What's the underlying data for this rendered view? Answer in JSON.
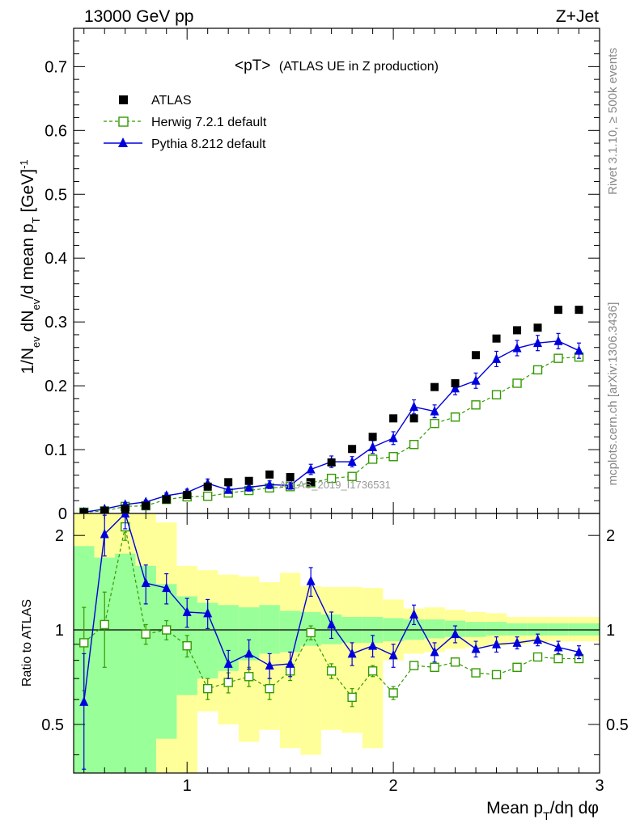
{
  "header": {
    "left": "13000 GeV pp",
    "right": "Z+Jet"
  },
  "side_text": {
    "rivet": "Rivet 3.1.10, ≥ 500k events",
    "mcplots": "mcplots.cern.ch [arXiv:1306.3436]"
  },
  "watermark": "ATLAS_2019_I1736531",
  "chart_data": [
    {
      "type": "scatter",
      "title": "<pT> (ATLAS UE in Z production)",
      "title_main": "<pT>",
      "title_sub": "(ATLAS UE in Z production)",
      "ylabel": "1/N_ev dN_ev/d mean p_T [GeV]^-1",
      "xlabel": "Mean p_T/dη dφ",
      "xlim": [
        0.45,
        3.0
      ],
      "ylim": [
        0,
        0.76
      ],
      "yticks": [
        0,
        0.1,
        0.2,
        0.3,
        0.4,
        0.5,
        0.6,
        0.7
      ],
      "ytick_labels": [
        "0",
        "0.1",
        "0.2",
        "0.3",
        "0.4",
        "0.5",
        "0.6",
        "0.7"
      ],
      "legend": [
        "ATLAS",
        "Herwig 7.2.1 default",
        "Pythia 8.212 default"
      ],
      "legend_position": "top-left",
      "x": [
        0.5,
        0.6,
        0.7,
        0.8,
        0.9,
        1.0,
        1.1,
        1.2,
        1.3,
        1.4,
        1.5,
        1.6,
        1.7,
        1.8,
        1.9,
        2.0,
        2.1,
        2.2,
        2.3,
        2.4,
        2.5,
        2.6,
        2.7,
        2.8,
        2.9
      ],
      "series": [
        {
          "name": "ATLAS",
          "marker": "filled-square",
          "color": "#000000",
          "values": [
            0.002,
            0.004,
            0.007,
            0.012,
            0.022,
            0.029,
            0.042,
            0.049,
            0.051,
            0.061,
            0.057,
            0.049,
            0.08,
            0.101,
            0.12,
            0.149,
            0.149,
            0.198,
            0.204,
            0.248,
            0.274,
            0.287,
            0.291,
            0.319,
            0.319
          ]
        },
        {
          "name": "Herwig 7.2.1 default",
          "marker": "open-square",
          "line": "dashed",
          "color": "#339900",
          "values": [
            0.002,
            0.004,
            0.011,
            0.012,
            0.022,
            0.026,
            0.027,
            0.032,
            0.036,
            0.04,
            0.042,
            0.048,
            0.055,
            0.058,
            0.085,
            0.089,
            0.108,
            0.141,
            0.151,
            0.17,
            0.186,
            0.204,
            0.225,
            0.243,
            0.245
          ],
          "errors": [
            0.0005,
            0.0007,
            0.001,
            0.001,
            0.001,
            0.002,
            0.002,
            0.002,
            0.003,
            0.003,
            0.003,
            0.004,
            0.004,
            0.004,
            0.004,
            0.004,
            0.004,
            0.004,
            0.004,
            0.004,
            0.004,
            0.004,
            0.004,
            0.004,
            0.004
          ]
        },
        {
          "name": "Pythia 8.212 default",
          "marker": "filled-triangle",
          "line": "solid",
          "color": "#0000dd",
          "values": [
            0.002,
            0.007,
            0.014,
            0.018,
            0.028,
            0.033,
            0.047,
            0.037,
            0.041,
            0.045,
            0.044,
            0.069,
            0.081,
            0.081,
            0.104,
            0.118,
            0.167,
            0.16,
            0.196,
            0.208,
            0.242,
            0.259,
            0.267,
            0.27,
            0.255
          ],
          "errors": [
            0.001,
            0.002,
            0.003,
            0.003,
            0.004,
            0.005,
            0.007,
            0.005,
            0.006,
            0.006,
            0.006,
            0.008,
            0.009,
            0.008,
            0.01,
            0.01,
            0.011,
            0.01,
            0.01,
            0.012,
            0.012,
            0.012,
            0.012,
            0.012,
            0.012
          ]
        }
      ]
    },
    {
      "type": "scatter",
      "ylabel": "Ratio to ATLAS",
      "xlabel": "Mean p_T/dη dφ",
      "xlim": [
        0.45,
        3.0
      ],
      "ylim": [
        0.35,
        2.35
      ],
      "yscale": "log",
      "yticks": [
        0.5,
        1,
        2
      ],
      "ytick_labels": [
        "0.5",
        "1",
        "2"
      ],
      "xticks": [
        1,
        2,
        3
      ],
      "xtick_labels": [
        "1",
        "2",
        "3"
      ],
      "x": [
        0.5,
        0.6,
        0.7,
        0.8,
        0.9,
        1.0,
        1.1,
        1.2,
        1.3,
        1.4,
        1.5,
        1.6,
        1.7,
        1.8,
        1.9,
        2.0,
        2.1,
        2.2,
        2.3,
        2.4,
        2.5,
        2.6,
        2.7,
        2.8,
        2.9
      ],
      "bands": {
        "stat_color": "#99ff99",
        "total_color": "#ffff99",
        "edges": [
          0.45,
          0.55,
          0.65,
          0.75,
          0.85,
          0.95,
          1.05,
          1.15,
          1.25,
          1.35,
          1.45,
          1.55,
          1.65,
          1.75,
          1.85,
          1.95,
          2.05,
          2.15,
          2.25,
          2.35,
          2.45,
          2.55,
          2.65,
          2.75,
          2.85,
          3.0
        ],
        "stat_low": [
          0.35,
          0.35,
          0.35,
          0.35,
          0.45,
          0.62,
          0.7,
          0.74,
          0.8,
          0.84,
          0.85,
          0.89,
          0.9,
          0.91,
          0.91,
          0.92,
          0.93,
          0.94,
          0.95,
          0.95,
          0.96,
          0.96,
          0.96,
          0.96,
          0.96
        ],
        "stat_high": [
          1.85,
          1.7,
          1.75,
          1.6,
          1.4,
          1.28,
          1.22,
          1.2,
          1.18,
          1.2,
          1.15,
          1.14,
          1.12,
          1.1,
          1.1,
          1.09,
          1.08,
          1.08,
          1.07,
          1.06,
          1.06,
          1.05,
          1.05,
          1.05,
          1.05
        ],
        "total_low": [
          0.35,
          0.35,
          0.35,
          0.35,
          0.35,
          0.35,
          0.55,
          0.5,
          0.44,
          0.48,
          0.42,
          0.4,
          0.48,
          0.47,
          0.42,
          0.8,
          0.84,
          0.85,
          0.87,
          0.88,
          0.89,
          0.9,
          0.91,
          0.92,
          0.92
        ],
        "total_high": [
          2.35,
          2.35,
          2.35,
          2.35,
          2.2,
          1.6,
          1.55,
          1.5,
          1.48,
          1.42,
          1.52,
          1.38,
          1.37,
          1.37,
          1.36,
          1.25,
          1.17,
          1.18,
          1.16,
          1.14,
          1.13,
          1.1,
          1.1,
          1.1,
          1.1
        ]
      },
      "series": [
        {
          "name": "Herwig 7.2.1 default",
          "color": "#339900",
          "values": [
            0.91,
            1.04,
            2.13,
            0.97,
            1.0,
            0.89,
            0.65,
            0.68,
            0.71,
            0.65,
            0.74,
            0.98,
            0.74,
            0.61,
            0.74,
            0.63,
            0.77,
            0.76,
            0.79,
            0.73,
            0.72,
            0.76,
            0.82,
            0.81,
            0.81
          ],
          "errors": [
            0.27,
            0.28,
            0.2,
            0.07,
            0.07,
            0.07,
            0.05,
            0.05,
            0.05,
            0.05,
            0.05,
            0.05,
            0.04,
            0.04,
            0.03,
            0.03,
            0.02,
            0.02,
            0.02,
            0.01,
            0.01,
            0.01,
            0.01,
            0.01,
            0.01
          ]
        },
        {
          "name": "Pythia 8.212 default",
          "color": "#0000dd",
          "values": [
            0.59,
            2.02,
            2.35,
            1.41,
            1.36,
            1.14,
            1.13,
            0.78,
            0.84,
            0.77,
            0.78,
            1.43,
            1.04,
            0.84,
            0.89,
            0.83,
            1.12,
            0.85,
            0.97,
            0.87,
            0.9,
            0.91,
            0.93,
            0.88,
            0.85
          ],
          "errors": [
            0.25,
            0.3,
            0.25,
            0.2,
            0.15,
            0.12,
            0.12,
            0.08,
            0.09,
            0.07,
            0.07,
            0.15,
            0.1,
            0.07,
            0.07,
            0.07,
            0.08,
            0.06,
            0.06,
            0.05,
            0.05,
            0.04,
            0.04,
            0.04,
            0.04
          ]
        }
      ]
    }
  ]
}
